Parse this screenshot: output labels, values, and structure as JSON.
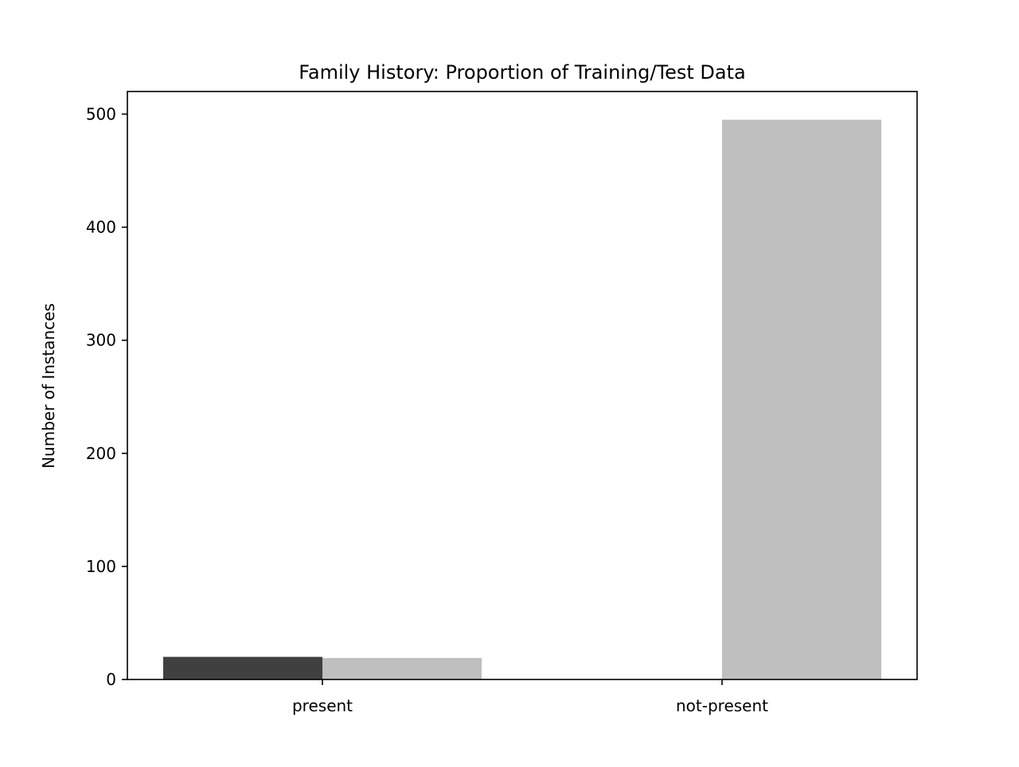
{
  "chart_data": {
    "type": "bar",
    "title": "Family History: Proportion of Training/Test Data",
    "xlabel": "",
    "ylabel": "Number of Instances",
    "categories": [
      "present",
      "not-present"
    ],
    "series": [
      {
        "values": [
          20,
          0
        ],
        "color": "#404040"
      },
      {
        "values": [
          19,
          495
        ],
        "color": "#bfbfbf"
      }
    ],
    "ylim": [
      0,
      520
    ],
    "yticks": [
      0,
      100,
      200,
      300,
      400,
      500
    ],
    "grid": false,
    "legend": "none"
  }
}
